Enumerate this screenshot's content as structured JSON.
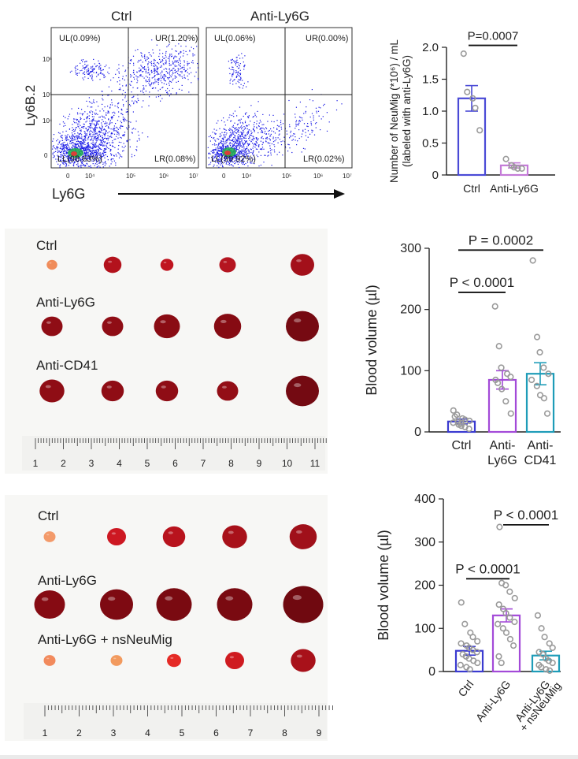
{
  "flow": {
    "panels": [
      {
        "title": "Ctrl",
        "quadrants": {
          "ul": "UL(0.09%)",
          "ur": "UR(1.20%)",
          "ll": "LL(98.63%)",
          "lr": "LR(0.08%)"
        }
      },
      {
        "title": "Anti-Ly6G",
        "quadrants": {
          "ul": "UL(0.06%)",
          "ur": "UR(0.00%)",
          "ll": "LL(99.92%)",
          "lr": "LR(0.02%)"
        }
      }
    ],
    "ylabel": "Ly6B.2",
    "xlabel": "Ly6G",
    "yticks": [
      "10⁶",
      "10⁵",
      "10⁴",
      "0"
    ],
    "xticks": [
      "0",
      "10⁴",
      "10⁵",
      "10⁶",
      "10⁷"
    ]
  },
  "photos": [
    {
      "rows": [
        {
          "label": "Ctrl",
          "sizes": [
            0.45,
            0.75,
            0.55,
            0.7,
            1.0
          ],
          "colors": [
            "#f08c5a",
            "#b3121c",
            "#c0141f",
            "#b51520",
            "#a3101a"
          ]
        },
        {
          "label": "Anti-Ly6G",
          "sizes": [
            0.9,
            0.9,
            1.1,
            1.15,
            1.4
          ],
          "colors": [
            "#8f0d15",
            "#8f0d15",
            "#8a0c14",
            "#860b13",
            "#760a12"
          ]
        },
        {
          "label": "Anti-CD41",
          "sizes": [
            1.05,
            0.95,
            0.95,
            0.9,
            1.4
          ],
          "colors": [
            "#8f0d15",
            "#8f0d15",
            "#8f0d15",
            "#930e16",
            "#740a12"
          ]
        }
      ],
      "ruler_labels": [
        "1",
        "2",
        "3",
        "4",
        "5",
        "6",
        "7",
        "8",
        "9",
        "10",
        "11"
      ]
    },
    {
      "rows": [
        {
          "label": "Ctrl",
          "sizes": [
            0.5,
            0.8,
            0.95,
            1.05,
            1.15
          ],
          "colors": [
            "#f39a6a",
            "#cd1822",
            "#b8131d",
            "#a8111a",
            "#a0101a"
          ]
        },
        {
          "label": "Anti-Ly6G",
          "sizes": [
            1.3,
            1.4,
            1.5,
            1.5,
            1.7
          ],
          "colors": [
            "#860b13",
            "#7e0a12",
            "#7a0a11",
            "#7a0a11",
            "#700910"
          ]
        },
        {
          "label": "Anti-Ly6G + nsNeuMig",
          "sizes": [
            0.5,
            0.5,
            0.6,
            0.8,
            1.05
          ],
          "colors": [
            "#f28a5c",
            "#f29a5e",
            "#e52a25",
            "#cf1b20",
            "#a8111a"
          ]
        }
      ],
      "ruler_labels": [
        "1",
        "2",
        "3",
        "4",
        "5",
        "6",
        "7",
        "8",
        "9"
      ]
    }
  ],
  "chart_data": [
    {
      "type": "bar",
      "ylabel": "Number of NeuMig (*10⁶) / mL (labeled with anti-Ly6G)",
      "ylim": [
        0,
        2.0
      ],
      "yticks": [
        0,
        0.5,
        1.0,
        1.5,
        2.0
      ],
      "ytick_labels": [
        "0",
        "0.5",
        "1.0",
        "1.5",
        "2.0"
      ],
      "categories": [
        "Ctrl",
        "Anti-Ly6G"
      ],
      "values": [
        1.2,
        0.15
      ],
      "errors": [
        0.2,
        0.04
      ],
      "colors": [
        "#4a4ad6",
        "#c47ad8"
      ],
      "points": [
        [
          1.9,
          1.3,
          1.2,
          1.05,
          0.7
        ],
        [
          0.25,
          0.15,
          0.12,
          0.1,
          0.1
        ]
      ],
      "annotations": [
        {
          "text": "P=0.0007",
          "from": 0,
          "to": 1,
          "y": 2.03
        }
      ]
    },
    {
      "type": "bar",
      "ylabel": "Blood volume (µl)",
      "ylim": [
        0,
        300
      ],
      "yticks": [
        0,
        100,
        200,
        300
      ],
      "ytick_labels": [
        "0",
        "100",
        "200",
        "300"
      ],
      "categories": [
        "Ctrl",
        "Anti-\nLy6G",
        "Anti-\nCD41"
      ],
      "values": [
        17,
        85,
        95
      ],
      "errors": [
        4,
        15,
        18
      ],
      "colors": [
        "#3a3ad0",
        "#a34ad8",
        "#1e9cb8"
      ],
      "points": [
        [
          35,
          28,
          22,
          20,
          18,
          15,
          12,
          10,
          8,
          5,
          25,
          16,
          14
        ],
        [
          205,
          140,
          105,
          95,
          90,
          85,
          80,
          70,
          50,
          30
        ],
        [
          280,
          155,
          130,
          105,
          95,
          85,
          75,
          60,
          55,
          30
        ]
      ],
      "annotations": [
        {
          "text": "P < 0.0001",
          "from": 0,
          "to": 1,
          "y": 228
        },
        {
          "text": "P = 0.0002",
          "from": 0,
          "to": 2,
          "y": 297
        }
      ]
    },
    {
      "type": "bar",
      "ylabel": "Blood volume (µl)",
      "ylim": [
        0,
        400
      ],
      "yticks": [
        0,
        100,
        200,
        300,
        400
      ],
      "ytick_labels": [
        "0",
        "100",
        "200",
        "300",
        "400"
      ],
      "categories": [
        "Ctrl",
        "Anti-Ly6G",
        "Anti-Ly6G\n+ nsNeuMig"
      ],
      "values": [
        48,
        130,
        37
      ],
      "errors": [
        10,
        15,
        10
      ],
      "colors": [
        "#3a3ad0",
        "#a34ad8",
        "#1e9cb8"
      ],
      "points": [
        [
          160,
          110,
          90,
          80,
          70,
          65,
          60,
          55,
          50,
          45,
          40,
          35,
          30,
          25,
          20,
          15,
          10,
          5
        ],
        [
          335,
          205,
          200,
          185,
          170,
          155,
          145,
          135,
          125,
          115,
          110,
          100,
          90,
          75,
          60,
          35,
          20
        ],
        [
          130,
          100,
          80,
          65,
          55,
          45,
          40,
          30,
          25,
          20,
          15,
          10,
          5,
          2
        ]
      ],
      "annotations": [
        {
          "text": "P < 0.0001",
          "from": 0,
          "to": 1,
          "y": 215
        },
        {
          "text": "P < 0.0001",
          "from": 1,
          "to": 2,
          "y": 340
        }
      ]
    }
  ]
}
